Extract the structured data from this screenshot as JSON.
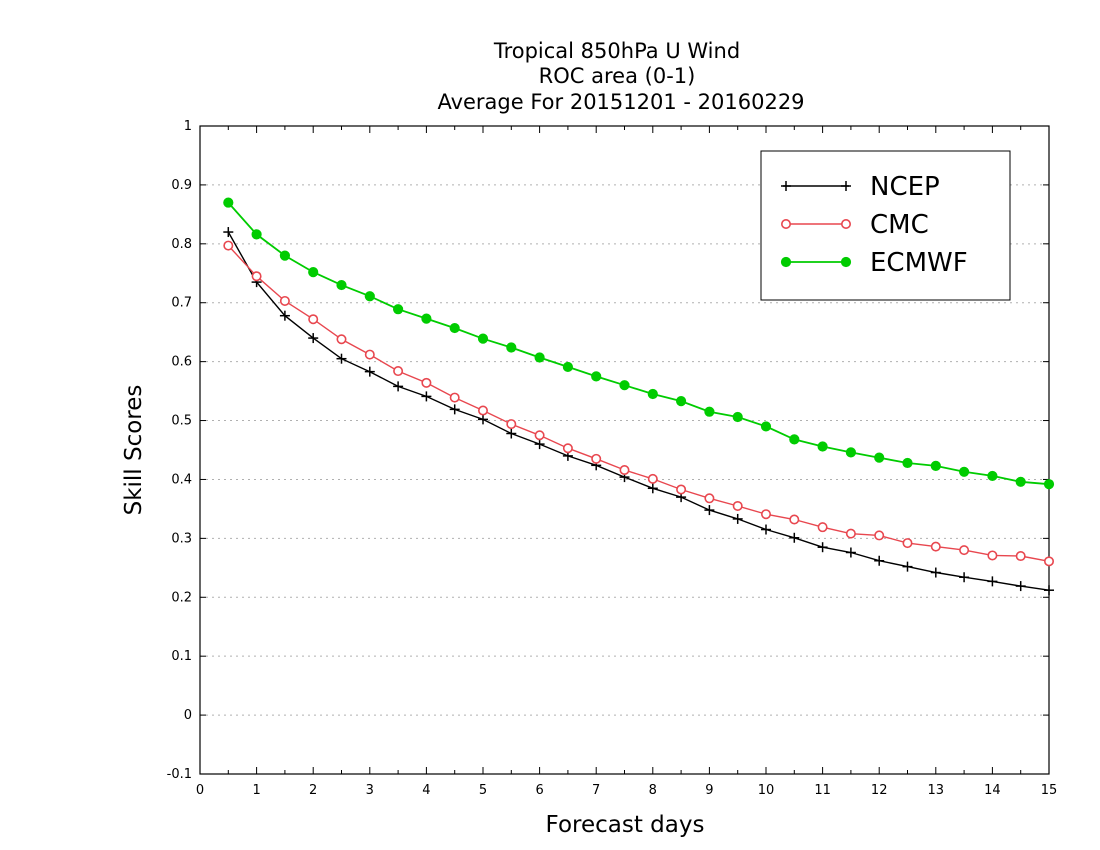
{
  "chart_data": {
    "type": "line",
    "title": [
      "Tropical 850hPa U Wind",
      "ROC area (0-1)",
      "Average For 20151201 - 20160229"
    ],
    "xlabel": "Forecast days",
    "ylabel": "Skill Scores",
    "xlim": [
      0,
      15
    ],
    "ylim": [
      -0.1,
      1
    ],
    "xticks": [
      "0",
      "1",
      "2",
      "3",
      "4",
      "5",
      "6",
      "7",
      "8",
      "9",
      "10",
      "11",
      "12",
      "13",
      "14",
      "15"
    ],
    "yticks": [
      "-0.1",
      "0",
      "0.1",
      "0.2",
      "0.3",
      "0.4",
      "0.5",
      "0.6",
      "0.7",
      "0.8",
      "0.9",
      "1"
    ],
    "grid": true,
    "legend_position": "top-right",
    "x": [
      0.5,
      1,
      1.5,
      2,
      2.5,
      3,
      3.5,
      4,
      4.5,
      5,
      5.5,
      6,
      6.5,
      7,
      7.5,
      8,
      8.5,
      9,
      9.5,
      10,
      10.5,
      11,
      11.5,
      12,
      12.5,
      13,
      13.5,
      14,
      14.5,
      15
    ],
    "series": [
      {
        "name": "NCEP",
        "color": "#000000",
        "marker": "plus",
        "values": [
          0.82,
          0.735,
          0.678,
          0.64,
          0.605,
          0.583,
          0.558,
          0.541,
          0.519,
          0.502,
          0.478,
          0.46,
          0.44,
          0.424,
          0.404,
          0.385,
          0.37,
          0.348,
          0.333,
          0.315,
          0.301,
          0.285,
          0.276,
          0.262,
          0.252,
          0.242,
          0.234,
          0.227,
          0.219,
          0.212
        ]
      },
      {
        "name": "CMC",
        "color": "#e8474f",
        "marker": "open-circle",
        "values": [
          0.797,
          0.745,
          0.703,
          0.672,
          0.638,
          0.612,
          0.584,
          0.564,
          0.539,
          0.517,
          0.494,
          0.475,
          0.453,
          0.435,
          0.416,
          0.401,
          0.383,
          0.368,
          0.355,
          0.341,
          0.332,
          0.319,
          0.308,
          0.305,
          0.292,
          0.286,
          0.28,
          0.271,
          0.27,
          0.261
        ]
      },
      {
        "name": "ECMWF",
        "color": "#00cc00",
        "marker": "filled-circle",
        "values": [
          0.87,
          0.816,
          0.78,
          0.752,
          0.73,
          0.711,
          0.689,
          0.673,
          0.657,
          0.639,
          0.624,
          0.607,
          0.591,
          0.575,
          0.56,
          0.545,
          0.533,
          0.515,
          0.506,
          0.49,
          0.468,
          0.456,
          0.446,
          0.437,
          0.428,
          0.423,
          0.413,
          0.406,
          0.396,
          0.392
        ]
      }
    ]
  }
}
